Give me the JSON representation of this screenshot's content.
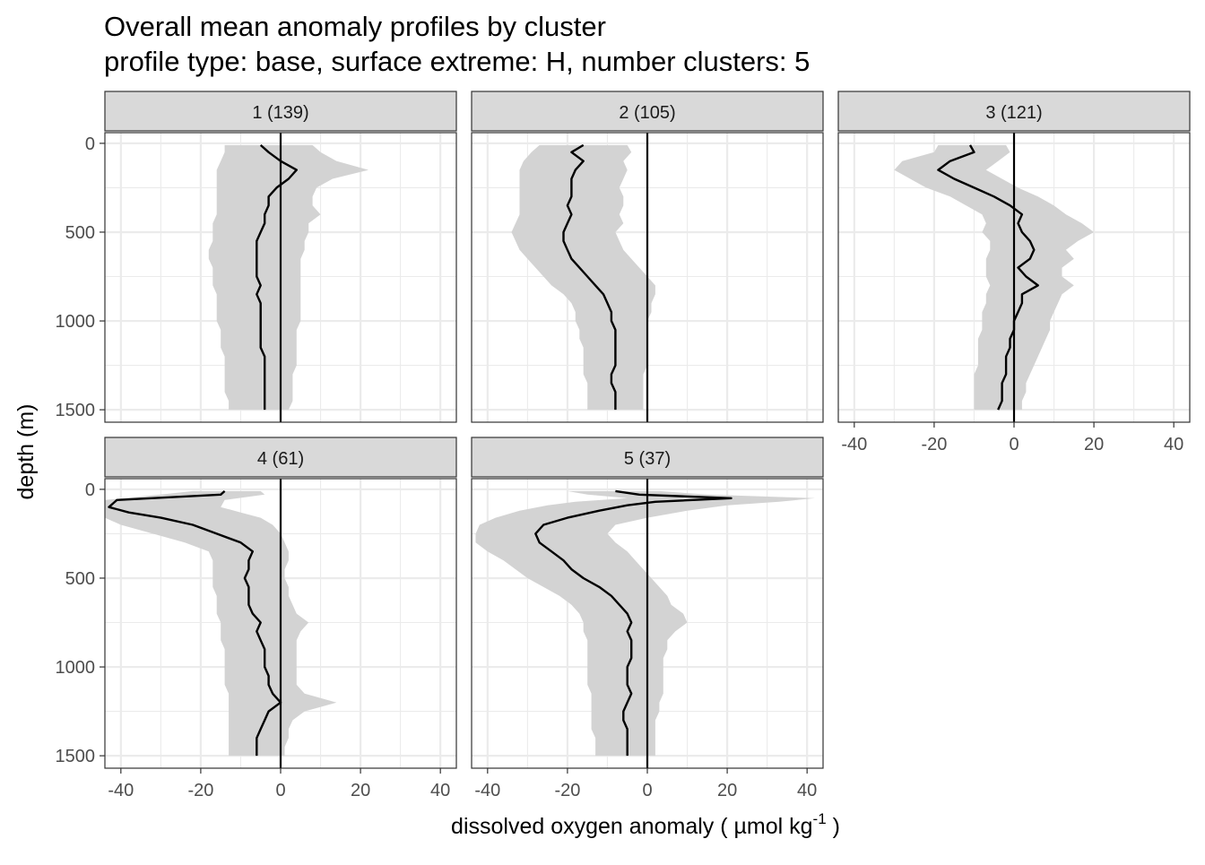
{
  "chart_data": {
    "type": "line",
    "title": "Overall mean anomaly profiles by cluster",
    "subtitle": "profile type: base, surface extreme: H, number clusters: 5",
    "xlabel": "dissolved oxygen anomaly ( µmol kg",
    "xlabel_sup": "-1",
    "xlabel_end": " )",
    "ylabel": "depth (m)",
    "xlim": [
      -44,
      44
    ],
    "ylim": [
      1570,
      -60
    ],
    "x_ticks": [
      -40,
      -20,
      0,
      20,
      40
    ],
    "x_tick_labels": [
      "-40",
      "-20",
      "0",
      "20",
      "40"
    ],
    "y_ticks": [
      0,
      500,
      1000,
      1500
    ],
    "y_tick_labels": [
      "0",
      "500",
      "1000",
      "1500"
    ],
    "reference_line_x": 0,
    "colors": {
      "line": "#000000",
      "ribbon": "#d3d3d3",
      "strip": "#d9d9d9",
      "grid": "#ebebeb",
      "panel_border": "#333333"
    },
    "panels": [
      {
        "label": "1 (139)",
        "depth": [
          10,
          50,
          100,
          150,
          200,
          250,
          300,
          350,
          400,
          450,
          500,
          550,
          600,
          650,
          700,
          750,
          800,
          850,
          900,
          950,
          1000,
          1050,
          1100,
          1150,
          1200,
          1250,
          1300,
          1350,
          1400,
          1450,
          1500
        ],
        "mean": [
          -5,
          -3,
          0,
          4,
          2,
          -1,
          -3,
          -3,
          -4,
          -4,
          -5,
          -6,
          -6,
          -6,
          -6,
          -6,
          -5,
          -6,
          -5,
          -5,
          -5,
          -5,
          -5,
          -5,
          -4,
          -4,
          -4,
          -4,
          -4,
          -4,
          -4
        ],
        "lower": [
          -14,
          -14,
          -15,
          -16,
          -16,
          -16,
          -16,
          -16,
          -16,
          -17,
          -17,
          -17,
          -18,
          -18,
          -17,
          -17,
          -17,
          -16,
          -16,
          -16,
          -16,
          -15,
          -15,
          -15,
          -14,
          -14,
          -14,
          -14,
          -14,
          -13,
          -13
        ],
        "upper": [
          8,
          10,
          14,
          22,
          13,
          9,
          8,
          8,
          10,
          7,
          7,
          6,
          6,
          5,
          5,
          5,
          5,
          5,
          5,
          5,
          5,
          4,
          4,
          4,
          4,
          4,
          3,
          3,
          3,
          3,
          2
        ]
      },
      {
        "label": "2 (105)",
        "depth": [
          10,
          50,
          100,
          150,
          200,
          250,
          300,
          350,
          400,
          450,
          500,
          550,
          600,
          650,
          700,
          750,
          800,
          850,
          900,
          950,
          1000,
          1050,
          1100,
          1150,
          1200,
          1250,
          1300,
          1350,
          1400,
          1450,
          1500
        ],
        "mean": [
          -16,
          -19,
          -16,
          -18,
          -19,
          -19,
          -19,
          -20,
          -19,
          -20,
          -21,
          -21,
          -20,
          -19,
          -17,
          -15,
          -13,
          -11,
          -10,
          -9,
          -9,
          -8,
          -8,
          -8,
          -8,
          -8,
          -9,
          -9,
          -8,
          -8,
          -8
        ],
        "lower": [
          -27,
          -29,
          -31,
          -32,
          -32,
          -32,
          -32,
          -32,
          -32,
          -33,
          -34,
          -33,
          -32,
          -30,
          -28,
          -26,
          -24,
          -21,
          -19,
          -18,
          -18,
          -17,
          -17,
          -16,
          -16,
          -16,
          -16,
          -15,
          -15,
          -15,
          -15
        ],
        "upper": [
          -5,
          -4,
          -6,
          -5,
          -6,
          -7,
          -6,
          -6,
          -7,
          -6,
          -8,
          -7,
          -6,
          -4,
          -2,
          0,
          2,
          2,
          1,
          1,
          0,
          0,
          0,
          0,
          0,
          0,
          -1,
          -1,
          -1,
          -1,
          -1
        ]
      },
      {
        "label": "3 (121)",
        "depth": [
          10,
          50,
          100,
          150,
          200,
          250,
          300,
          350,
          400,
          450,
          500,
          550,
          600,
          650,
          700,
          750,
          800,
          850,
          900,
          950,
          1000,
          1050,
          1100,
          1150,
          1200,
          1250,
          1300,
          1350,
          1400,
          1450,
          1500
        ],
        "mean": [
          -11,
          -10,
          -16,
          -19,
          -15,
          -10,
          -5,
          -1,
          2,
          1,
          2,
          4,
          5,
          4,
          1,
          3,
          6,
          2,
          2,
          1,
          0,
          0,
          -1,
          -1,
          -2,
          -2,
          -2,
          -3,
          -3,
          -3,
          -4
        ],
        "lower": [
          -19,
          -20,
          -28,
          -30,
          -26,
          -22,
          -16,
          -12,
          -8,
          -7,
          -8,
          -6,
          -6,
          -7,
          -7,
          -7,
          -6,
          -7,
          -7,
          -8,
          -8,
          -8,
          -9,
          -9,
          -9,
          -9,
          -10,
          -10,
          -10,
          -10,
          -10
        ],
        "upper": [
          -2,
          -1,
          -4,
          -7,
          -3,
          1,
          6,
          10,
          13,
          17,
          20,
          16,
          13,
          15,
          12,
          12,
          15,
          12,
          11,
          10,
          9,
          9,
          8,
          7,
          6,
          5,
          4,
          3,
          3,
          2,
          2
        ]
      },
      {
        "label": "4 (61)",
        "depth": [
          10,
          30,
          60,
          100,
          130,
          160,
          200,
          250,
          300,
          350,
          400,
          450,
          500,
          550,
          600,
          650,
          700,
          750,
          800,
          850,
          900,
          950,
          1000,
          1050,
          1100,
          1150,
          1200,
          1250,
          1300,
          1350,
          1400,
          1450,
          1500
        ],
        "mean": [
          -14,
          -15,
          -41,
          -43,
          -38,
          -30,
          -22,
          -16,
          -10,
          -7,
          -8,
          -8,
          -9,
          -8,
          -8,
          -8,
          -7,
          -5,
          -6,
          -5,
          -4,
          -4,
          -4,
          -3,
          -3,
          -2,
          0,
          -3,
          -4,
          -5,
          -6,
          -6,
          -6
        ],
        "lower": [
          -22,
          -30,
          -44,
          -44,
          -44,
          -44,
          -40,
          -32,
          -24,
          -18,
          -17,
          -17,
          -17,
          -17,
          -16,
          -16,
          -16,
          -15,
          -15,
          -15,
          -14,
          -14,
          -14,
          -14,
          -14,
          -13,
          -13,
          -13,
          -13,
          -13,
          -13,
          -13,
          -13
        ],
        "upper": [
          -5,
          -4,
          -14,
          -15,
          -10,
          -5,
          -2,
          0,
          1,
          2,
          2,
          1,
          1,
          2,
          2,
          3,
          4,
          7,
          5,
          4,
          4,
          4,
          4,
          4,
          4,
          6,
          14,
          6,
          3,
          2,
          2,
          1,
          1
        ]
      },
      {
        "label": "5 (37)",
        "depth": [
          10,
          30,
          50,
          70,
          90,
          120,
          160,
          200,
          250,
          300,
          350,
          400,
          450,
          500,
          550,
          600,
          650,
          700,
          750,
          800,
          850,
          900,
          950,
          1000,
          1050,
          1100,
          1150,
          1200,
          1250,
          1300,
          1350,
          1400,
          1450,
          1500
        ],
        "mean": [
          -8,
          -2,
          21,
          2,
          -5,
          -12,
          -20,
          -26,
          -28,
          -27,
          -24,
          -21,
          -19,
          -16,
          -12,
          -9,
          -7,
          -5,
          -4,
          -5,
          -4,
          -4,
          -4,
          -5,
          -5,
          -5,
          -4,
          -5,
          -6,
          -6,
          -5,
          -5,
          -5,
          -5
        ],
        "lower": [
          -20,
          -15,
          -5,
          -18,
          -25,
          -32,
          -38,
          -42,
          -43,
          -43,
          -40,
          -36,
          -33,
          -30,
          -26,
          -22,
          -19,
          -17,
          -16,
          -16,
          -15,
          -15,
          -15,
          -15,
          -15,
          -15,
          -14,
          -14,
          -14,
          -14,
          -14,
          -13,
          -13,
          -13
        ],
        "upper": [
          3,
          15,
          42,
          33,
          20,
          10,
          0,
          -8,
          -10,
          -8,
          -5,
          -3,
          -1,
          1,
          3,
          5,
          6,
          9,
          10,
          7,
          5,
          5,
          4,
          4,
          4,
          4,
          4,
          3,
          3,
          2,
          2,
          2,
          2,
          2
        ]
      }
    ]
  }
}
